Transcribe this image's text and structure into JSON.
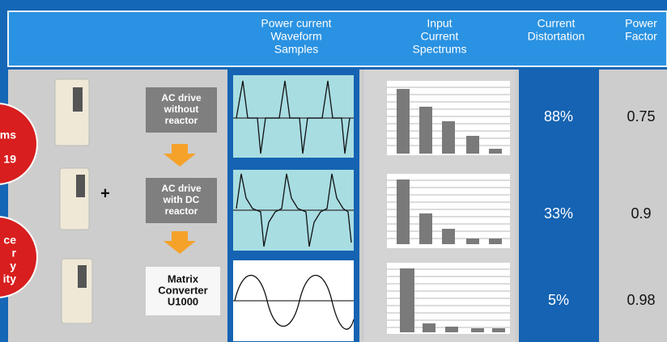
{
  "header": {
    "columns": [
      {
        "lines": [
          "Power current",
          "Waveform",
          "Samples"
        ]
      },
      {
        "lines": [
          "Input",
          "Current",
          "Spectrums"
        ]
      },
      {
        "lines": [
          "Current",
          "Distortation"
        ]
      },
      {
        "lines": [
          "Power",
          "Factor"
        ]
      }
    ]
  },
  "badges": [
    {
      "lines": [
        "ms",
        "19"
      ]
    },
    {
      "lines": [
        "ce",
        "r",
        "y",
        "ity"
      ]
    }
  ],
  "rows": [
    {
      "label": [
        "AC drive",
        "without",
        "reactor"
      ],
      "distortion": "88%",
      "power_factor": "0.75"
    },
    {
      "label": [
        "AC drive",
        "with DC",
        "reactor"
      ],
      "connector": "+",
      "distortion": "33%",
      "power_factor": "0.9"
    },
    {
      "label": [
        "Matrix",
        "Converter",
        "U1000"
      ],
      "distortion": "5%",
      "power_factor": "0.98"
    }
  ]
}
